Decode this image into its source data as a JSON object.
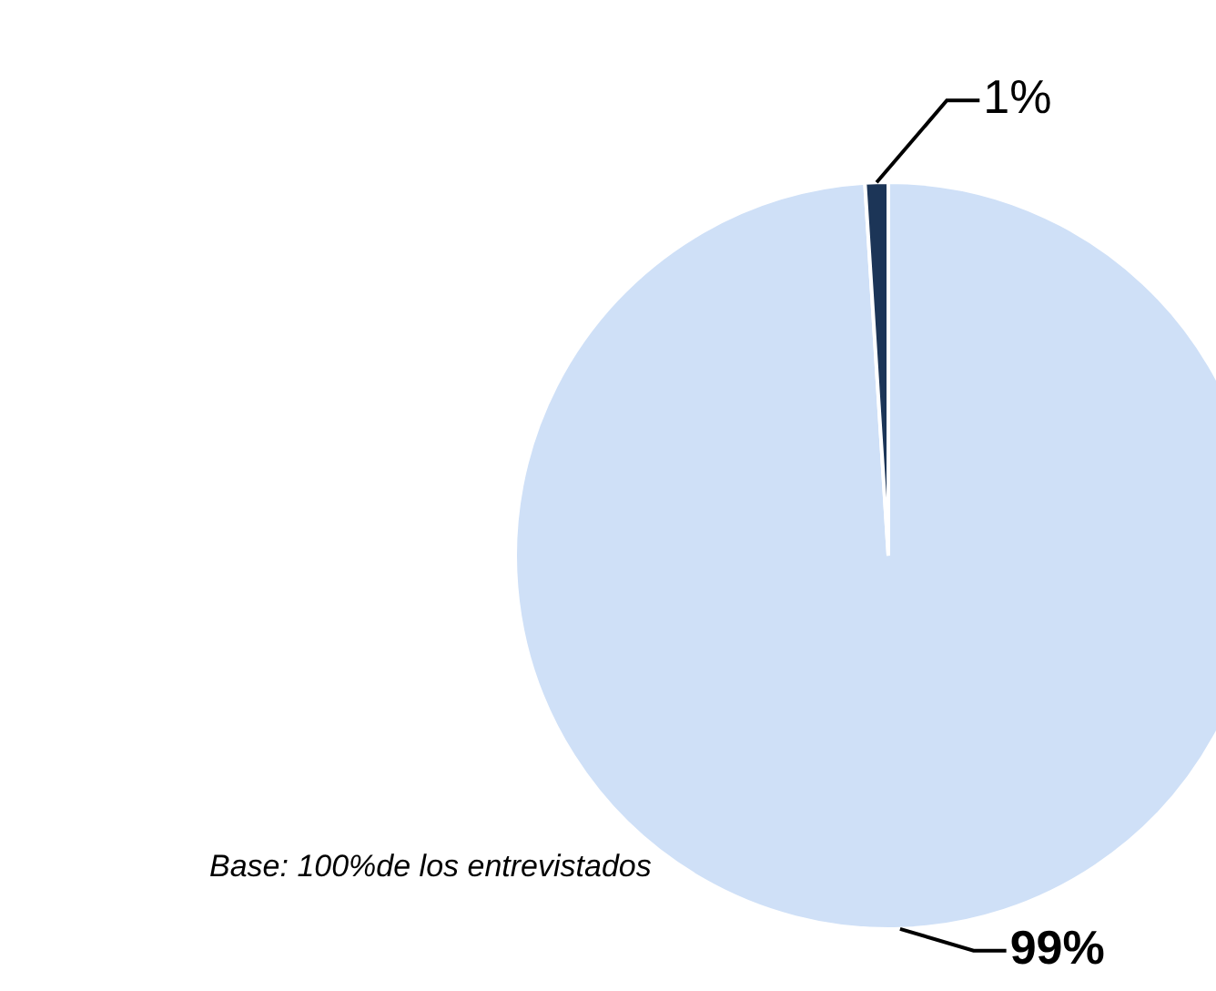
{
  "chart_data": {
    "type": "pie",
    "categories": [
      null,
      null
    ],
    "values": [
      99,
      1
    ],
    "colors": [
      "#cfe0f7",
      "#1c3557"
    ],
    "value_labels": [
      "99%",
      "1%"
    ],
    "annotations": [
      "Base: 100%de los entrevistados"
    ]
  }
}
